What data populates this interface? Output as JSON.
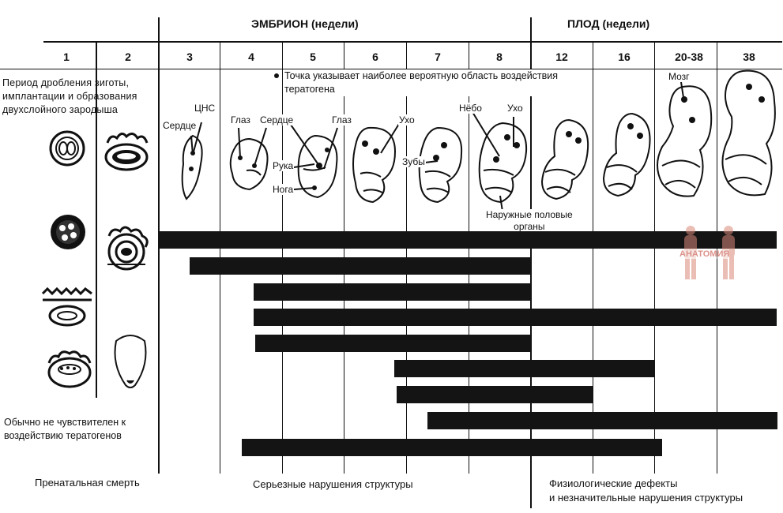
{
  "header": {
    "embryo": "ЭМБРИОН (недели)",
    "fetus": "ПЛОД (недели)"
  },
  "weeks": [
    "1",
    "2",
    "3",
    "4",
    "5",
    "6",
    "7",
    "8",
    "12",
    "16",
    "20-38",
    "38"
  ],
  "notes": {
    "period": [
      "Период дробления зиготы,",
      "имплантации и образования",
      "двухслойного зародыша"
    ],
    "dot_legend": [
      "Точка указывает наиболее вероятную область воздействия",
      "тератогена"
    ],
    "insensitive": [
      "Обычно не чувствителен к",
      "воздействию тератогенов"
    ]
  },
  "organ_labels": {
    "cns": "ЦНС",
    "heart1": "Сердце",
    "eye1": "Глаз",
    "heart2": "Сердце",
    "eye2": "Глаз",
    "ear1": "Ухо",
    "arm": "Рука",
    "leg": "Нога",
    "teeth": "Зубы",
    "palate": "Нёбо",
    "ear2": "Ухо",
    "genitals": [
      "Наружные половые",
      "органы"
    ],
    "brain": "Мозг"
  },
  "footer": {
    "death": "Пренатальная смерть",
    "major": "Серьезные нарушения структуры",
    "minor": [
      "Физиологические дефекты",
      "и незначительные нарушения структуры"
    ]
  },
  "watermark": "АНАТОМИЯ",
  "colors": {
    "bar": "#141414",
    "line": "#111111",
    "watermark": "#c0392b"
  }
}
